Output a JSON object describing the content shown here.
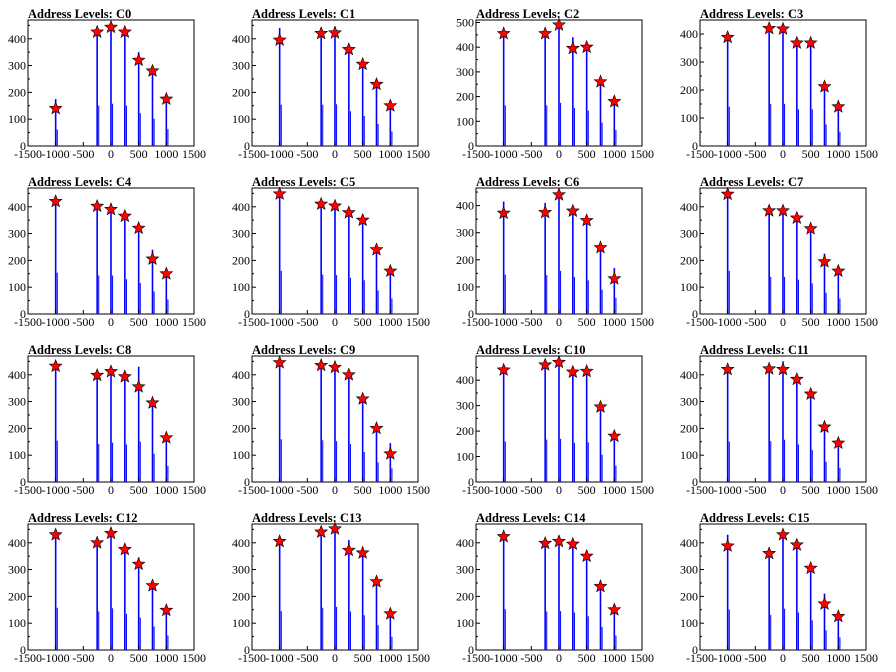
{
  "chart_data": [
    {
      "type": "histogram",
      "title": "Address Levels: C0",
      "xlim": [
        -1500,
        1500
      ],
      "xticks": [
        -1500,
        -1000,
        -500,
        0,
        500,
        1000,
        1500
      ],
      "ylim": [
        0,
        470
      ],
      "yticks": [
        0,
        100,
        200,
        300,
        400
      ],
      "peaks": [
        {
          "x": -1000,
          "y": 140,
          "bar": 175
        },
        {
          "x": -250,
          "y": 425,
          "bar": 430
        },
        {
          "x": 0,
          "y": 443,
          "bar": 450
        },
        {
          "x": 250,
          "y": 425,
          "bar": 430
        },
        {
          "x": 500,
          "y": 320,
          "bar": 350
        },
        {
          "x": 750,
          "y": 280,
          "bar": 290
        },
        {
          "x": 1000,
          "y": 175,
          "bar": 180
        }
      ]
    },
    {
      "type": "histogram",
      "title": "Address Levels: C1",
      "xlim": [
        -1500,
        1500
      ],
      "xticks": [
        -1500,
        -1000,
        -500,
        0,
        500,
        1000,
        1500
      ],
      "ylim": [
        0,
        470
      ],
      "yticks": [
        0,
        100,
        200,
        300,
        400
      ],
      "peaks": [
        {
          "x": -1000,
          "y": 395,
          "bar": 440
        },
        {
          "x": -250,
          "y": 420,
          "bar": 440
        },
        {
          "x": 0,
          "y": 422,
          "bar": 445
        },
        {
          "x": 250,
          "y": 360,
          "bar": 370
        },
        {
          "x": 500,
          "y": 305,
          "bar": 320
        },
        {
          "x": 750,
          "y": 230,
          "bar": 235
        },
        {
          "x": 1000,
          "y": 150,
          "bar": 155
        }
      ]
    },
    {
      "type": "histogram",
      "title": "Address Levels: C2",
      "xlim": [
        -1500,
        1500
      ],
      "xticks": [
        -1500,
        -1000,
        -500,
        0,
        500,
        1000,
        1500
      ],
      "ylim": [
        0,
        510
      ],
      "yticks": [
        0,
        100,
        200,
        300,
        400,
        500
      ],
      "peaks": [
        {
          "x": -1000,
          "y": 455,
          "bar": 470
        },
        {
          "x": -250,
          "y": 455,
          "bar": 470
        },
        {
          "x": 0,
          "y": 490,
          "bar": 500
        },
        {
          "x": 250,
          "y": 395,
          "bar": 440
        },
        {
          "x": 500,
          "y": 400,
          "bar": 410
        },
        {
          "x": 750,
          "y": 260,
          "bar": 270
        },
        {
          "x": 1000,
          "y": 180,
          "bar": 185
        }
      ]
    },
    {
      "type": "histogram",
      "title": "Address Levels: C3",
      "xlim": [
        -1500,
        1500
      ],
      "xticks": [
        -1500,
        -1000,
        -500,
        0,
        500,
        1000,
        1500
      ],
      "ylim": [
        0,
        450
      ],
      "yticks": [
        0,
        100,
        200,
        300,
        400
      ],
      "peaks": [
        {
          "x": -1000,
          "y": 388,
          "bar": 400
        },
        {
          "x": -250,
          "y": 420,
          "bar": 430
        },
        {
          "x": 0,
          "y": 418,
          "bar": 430
        },
        {
          "x": 250,
          "y": 368,
          "bar": 375
        },
        {
          "x": 500,
          "y": 368,
          "bar": 375
        },
        {
          "x": 750,
          "y": 212,
          "bar": 220
        },
        {
          "x": 1000,
          "y": 140,
          "bar": 145
        }
      ]
    },
    {
      "type": "histogram",
      "title": "Address Levels: C4",
      "xlim": [
        -1500,
        1500
      ],
      "xticks": [
        -1500,
        -1000,
        -500,
        0,
        500,
        1000,
        1500
      ],
      "ylim": [
        0,
        470
      ],
      "yticks": [
        0,
        100,
        200,
        300,
        400
      ],
      "peaks": [
        {
          "x": -1000,
          "y": 420,
          "bar": 440
        },
        {
          "x": -250,
          "y": 402,
          "bar": 410
        },
        {
          "x": 0,
          "y": 390,
          "bar": 410
        },
        {
          "x": 250,
          "y": 365,
          "bar": 370
        },
        {
          "x": 500,
          "y": 320,
          "bar": 330
        },
        {
          "x": 750,
          "y": 205,
          "bar": 240
        },
        {
          "x": 1000,
          "y": 150,
          "bar": 155
        }
      ]
    },
    {
      "type": "histogram",
      "title": "Address Levels: C5",
      "xlim": [
        -1500,
        1500
      ],
      "xticks": [
        -1500,
        -1000,
        -500,
        0,
        500,
        1000,
        1500
      ],
      "ylim": [
        0,
        470
      ],
      "yticks": [
        0,
        100,
        200,
        300,
        400
      ],
      "peaks": [
        {
          "x": -1000,
          "y": 448,
          "bar": 460
        },
        {
          "x": -250,
          "y": 410,
          "bar": 420
        },
        {
          "x": 0,
          "y": 403,
          "bar": 415
        },
        {
          "x": 250,
          "y": 378,
          "bar": 385
        },
        {
          "x": 500,
          "y": 350,
          "bar": 360
        },
        {
          "x": 750,
          "y": 240,
          "bar": 250
        },
        {
          "x": 1000,
          "y": 160,
          "bar": 165
        }
      ]
    },
    {
      "type": "histogram",
      "title": "Address Levels: C6",
      "xlim": [
        -1500,
        1500
      ],
      "xticks": [
        -1500,
        -1000,
        -500,
        0,
        500,
        1000,
        1500
      ],
      "ylim": [
        0,
        465
      ],
      "yticks": [
        0,
        100,
        200,
        300,
        400
      ],
      "peaks": [
        {
          "x": -1000,
          "y": 372,
          "bar": 415
        },
        {
          "x": -250,
          "y": 375,
          "bar": 410
        },
        {
          "x": 0,
          "y": 440,
          "bar": 455
        },
        {
          "x": 250,
          "y": 380,
          "bar": 390
        },
        {
          "x": 500,
          "y": 345,
          "bar": 355
        },
        {
          "x": 750,
          "y": 245,
          "bar": 255
        },
        {
          "x": 1000,
          "y": 130,
          "bar": 170
        }
      ]
    },
    {
      "type": "histogram",
      "title": "Address Levels: C7",
      "xlim": [
        -1500,
        1500
      ],
      "xticks": [
        -1500,
        -1000,
        -500,
        0,
        500,
        1000,
        1500
      ],
      "ylim": [
        0,
        470
      ],
      "yticks": [
        0,
        100,
        200,
        300,
        400
      ],
      "peaks": [
        {
          "x": -1000,
          "y": 447,
          "bar": 460
        },
        {
          "x": -250,
          "y": 385,
          "bar": 395
        },
        {
          "x": 0,
          "y": 385,
          "bar": 395
        },
        {
          "x": 250,
          "y": 358,
          "bar": 365
        },
        {
          "x": 500,
          "y": 318,
          "bar": 325
        },
        {
          "x": 750,
          "y": 195,
          "bar": 225
        },
        {
          "x": 1000,
          "y": 160,
          "bar": 165
        }
      ]
    },
    {
      "type": "histogram",
      "title": "Address Levels: C8",
      "xlim": [
        -1500,
        1500
      ],
      "xticks": [
        -1500,
        -1000,
        -500,
        0,
        500,
        1000,
        1500
      ],
      "ylim": [
        0,
        470
      ],
      "yticks": [
        0,
        100,
        200,
        300,
        400
      ],
      "peaks": [
        {
          "x": -1000,
          "y": 432,
          "bar": 440
        },
        {
          "x": -250,
          "y": 398,
          "bar": 405
        },
        {
          "x": 0,
          "y": 412,
          "bar": 420
        },
        {
          "x": 250,
          "y": 393,
          "bar": 400
        },
        {
          "x": 500,
          "y": 355,
          "bar": 430
        },
        {
          "x": 750,
          "y": 295,
          "bar": 300
        },
        {
          "x": 1000,
          "y": 165,
          "bar": 170
        }
      ]
    },
    {
      "type": "histogram",
      "title": "Address Levels: C9",
      "xlim": [
        -1500,
        1500
      ],
      "xticks": [
        -1500,
        -1000,
        -500,
        0,
        500,
        1000,
        1500
      ],
      "ylim": [
        0,
        470
      ],
      "yticks": [
        0,
        100,
        200,
        300,
        400
      ],
      "peaks": [
        {
          "x": -1000,
          "y": 445,
          "bar": 455
        },
        {
          "x": -250,
          "y": 435,
          "bar": 445
        },
        {
          "x": 0,
          "y": 428,
          "bar": 435
        },
        {
          "x": 250,
          "y": 400,
          "bar": 405
        },
        {
          "x": 500,
          "y": 310,
          "bar": 320
        },
        {
          "x": 750,
          "y": 200,
          "bar": 210
        },
        {
          "x": 1000,
          "y": 105,
          "bar": 145
        }
      ]
    },
    {
      "type": "histogram",
      "title": "Address Levels: C10",
      "xlim": [
        -1500,
        1500
      ],
      "xticks": [
        -1500,
        -1000,
        -500,
        0,
        500,
        1000,
        1500
      ],
      "ylim": [
        0,
        495
      ],
      "yticks": [
        0,
        100,
        200,
        300,
        400
      ],
      "peaks": [
        {
          "x": -1000,
          "y": 440,
          "bar": 455
        },
        {
          "x": -250,
          "y": 460,
          "bar": 475
        },
        {
          "x": 0,
          "y": 470,
          "bar": 485
        },
        {
          "x": 250,
          "y": 432,
          "bar": 440
        },
        {
          "x": 500,
          "y": 435,
          "bar": 445
        },
        {
          "x": 750,
          "y": 295,
          "bar": 305
        },
        {
          "x": 1000,
          "y": 180,
          "bar": 185
        }
      ]
    },
    {
      "type": "histogram",
      "title": "Address Levels: C11",
      "xlim": [
        -1500,
        1500
      ],
      "xticks": [
        -1500,
        -1000,
        -500,
        0,
        500,
        1000,
        1500
      ],
      "ylim": [
        0,
        470
      ],
      "yticks": [
        0,
        100,
        200,
        300,
        400
      ],
      "peaks": [
        {
          "x": -1000,
          "y": 420,
          "bar": 430
        },
        {
          "x": -250,
          "y": 422,
          "bar": 435
        },
        {
          "x": 0,
          "y": 420,
          "bar": 450
        },
        {
          "x": 250,
          "y": 383,
          "bar": 400
        },
        {
          "x": 500,
          "y": 328,
          "bar": 340
        },
        {
          "x": 750,
          "y": 205,
          "bar": 215
        },
        {
          "x": 1000,
          "y": 145,
          "bar": 150
        }
      ]
    },
    {
      "type": "histogram",
      "title": "Address Levels: C12",
      "xlim": [
        -1500,
        1500
      ],
      "xticks": [
        -1500,
        -1000,
        -500,
        0,
        500,
        1000,
        1500
      ],
      "ylim": [
        0,
        470
      ],
      "yticks": [
        0,
        100,
        200,
        300,
        400
      ],
      "peaks": [
        {
          "x": -1000,
          "y": 430,
          "bar": 450
        },
        {
          "x": -250,
          "y": 400,
          "bar": 410
        },
        {
          "x": 0,
          "y": 435,
          "bar": 445
        },
        {
          "x": 250,
          "y": 375,
          "bar": 385
        },
        {
          "x": 500,
          "y": 320,
          "bar": 345
        },
        {
          "x": 750,
          "y": 240,
          "bar": 250
        },
        {
          "x": 1000,
          "y": 148,
          "bar": 155
        }
      ]
    },
    {
      "type": "histogram",
      "title": "Address Levels: C13",
      "xlim": [
        -1500,
        1500
      ],
      "xticks": [
        -1500,
        -1000,
        -500,
        0,
        500,
        1000,
        1500
      ],
      "ylim": [
        0,
        470
      ],
      "yticks": [
        0,
        100,
        200,
        300,
        400
      ],
      "peaks": [
        {
          "x": -1000,
          "y": 405,
          "bar": 415
        },
        {
          "x": -250,
          "y": 440,
          "bar": 450
        },
        {
          "x": 0,
          "y": 452,
          "bar": 460
        },
        {
          "x": 250,
          "y": 372,
          "bar": 410
        },
        {
          "x": 500,
          "y": 362,
          "bar": 370
        },
        {
          "x": 750,
          "y": 255,
          "bar": 265
        },
        {
          "x": 1000,
          "y": 135,
          "bar": 140
        }
      ]
    },
    {
      "type": "histogram",
      "title": "Address Levels: C14",
      "xlim": [
        -1500,
        1500
      ],
      "xticks": [
        -1500,
        -1000,
        -500,
        0,
        500,
        1000,
        1500
      ],
      "ylim": [
        0,
        470
      ],
      "yticks": [
        0,
        100,
        200,
        300,
        400
      ],
      "peaks": [
        {
          "x": -1000,
          "y": 423,
          "bar": 435
        },
        {
          "x": -250,
          "y": 398,
          "bar": 410
        },
        {
          "x": 0,
          "y": 405,
          "bar": 415
        },
        {
          "x": 250,
          "y": 395,
          "bar": 400
        },
        {
          "x": 500,
          "y": 350,
          "bar": 360
        },
        {
          "x": 750,
          "y": 237,
          "bar": 245
        },
        {
          "x": 1000,
          "y": 150,
          "bar": 155
        }
      ]
    },
    {
      "type": "histogram",
      "title": "Address Levels: C15",
      "xlim": [
        -1500,
        1500
      ],
      "xticks": [
        -1500,
        -1000,
        -500,
        0,
        500,
        1000,
        1500
      ],
      "ylim": [
        0,
        470
      ],
      "yticks": [
        0,
        100,
        200,
        300,
        400
      ],
      "peaks": [
        {
          "x": -1000,
          "y": 388,
          "bar": 430
        },
        {
          "x": -250,
          "y": 360,
          "bar": 375
        },
        {
          "x": 0,
          "y": 430,
          "bar": 440
        },
        {
          "x": 250,
          "y": 392,
          "bar": 400
        },
        {
          "x": 500,
          "y": 305,
          "bar": 315
        },
        {
          "x": 750,
          "y": 172,
          "bar": 210
        },
        {
          "x": 1000,
          "y": 125,
          "bar": 135
        }
      ]
    }
  ],
  "colors": {
    "bars": "#0000ff",
    "markers": "#ff0000",
    "marker_outline": "#000000",
    "axis": "#000000",
    "background": "#ffffff"
  }
}
